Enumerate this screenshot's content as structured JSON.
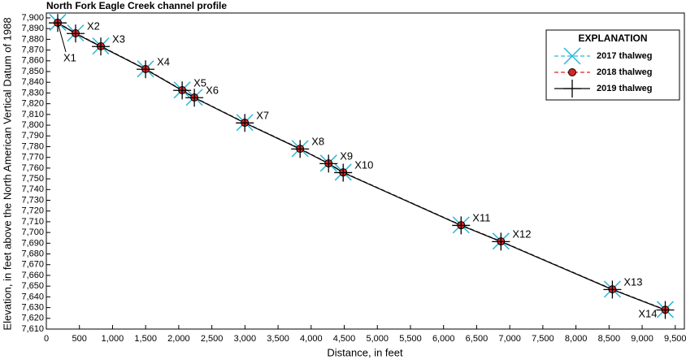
{
  "chart_data": {
    "type": "line",
    "title": "North Fork Eagle Creek channel profile",
    "xlabel": "Distance, in feet",
    "ylabel": "Elevation, in feet above the North American Vertical Datum of 1988",
    "legend_title": "EXPLANATION",
    "legend_position": "upper right",
    "xlim": [
      0,
      9650
    ],
    "ylim": [
      7610,
      7900
    ],
    "xticks": [
      0,
      500,
      {
        "value": 1000,
        "label": "1,000"
      },
      {
        "value": 1500,
        "label": "1,500"
      },
      {
        "value": 2000,
        "label": "2,000"
      },
      {
        "value": 2500,
        "label": "2,500"
      },
      {
        "value": 3000,
        "label": "3,000"
      },
      {
        "value": 3500,
        "label": "3,500"
      },
      {
        "value": 4000,
        "label": "4,000"
      },
      {
        "value": 4500,
        "label": "4,500"
      },
      {
        "value": 5000,
        "label": "5,000"
      },
      {
        "value": 5500,
        "label": "5,500"
      },
      {
        "value": 6000,
        "label": "6,000"
      },
      {
        "value": 6500,
        "label": "6,500"
      },
      {
        "value": 7000,
        "label": "7,000"
      },
      {
        "value": 7500,
        "label": "7,500"
      },
      {
        "value": 8000,
        "label": "8,000"
      },
      {
        "value": 8500,
        "label": "8,500"
      },
      {
        "value": 9000,
        "label": "9,000"
      },
      {
        "value": 9500,
        "label": "9,500"
      }
    ],
    "yticks": [
      {
        "value": 7610,
        "label": "7,610"
      },
      {
        "value": 7620,
        "label": "7,620"
      },
      {
        "value": 7630,
        "label": "7,630"
      },
      {
        "value": 7640,
        "label": "7,640"
      },
      {
        "value": 7650,
        "label": "7,650"
      },
      {
        "value": 7660,
        "label": "7,660"
      },
      {
        "value": 7670,
        "label": "7,670"
      },
      {
        "value": 7680,
        "label": "7,680"
      },
      {
        "value": 7690,
        "label": "7,690"
      },
      {
        "value": 7700,
        "label": "7,700"
      },
      {
        "value": 7710,
        "label": "7,710"
      },
      {
        "value": 7720,
        "label": "7,720"
      },
      {
        "value": 7730,
        "label": "7,730"
      },
      {
        "value": 7740,
        "label": "7,740"
      },
      {
        "value": 7750,
        "label": "7,750"
      },
      {
        "value": 7760,
        "label": "7,760"
      },
      {
        "value": 7770,
        "label": "7,770"
      },
      {
        "value": 7780,
        "label": "7,780"
      },
      {
        "value": 7790,
        "label": "7,790"
      },
      {
        "value": 7800,
        "label": "7,800"
      },
      {
        "value": 7810,
        "label": "7,810"
      },
      {
        "value": 7820,
        "label": "7,820"
      },
      {
        "value": 7830,
        "label": "7,830"
      },
      {
        "value": 7840,
        "label": "7,840"
      },
      {
        "value": 7850,
        "label": "7,850"
      },
      {
        "value": 7860,
        "label": "7,860"
      },
      {
        "value": 7870,
        "label": "7,870"
      },
      {
        "value": 7880,
        "label": "7,880"
      },
      {
        "value": 7890,
        "label": "7,890"
      },
      {
        "value": 7900,
        "label": "7,900"
      }
    ],
    "point_labels": [
      "X1",
      "X2",
      "X3",
      "X4",
      "X5",
      "X6",
      "X7",
      "X8",
      "X9",
      "X10",
      "X11",
      "X12",
      "X13",
      "X14"
    ],
    "x": [
      172,
      442,
      823,
      1499,
      2052,
      2236,
      2998,
      3833,
      4263,
      4484,
      6265,
      6867,
      8550,
      9349
    ],
    "series": [
      {
        "name": "2017 thalweg",
        "color": "#29b6d8",
        "marker": "x",
        "dash": true,
        "values": [
          7895.8,
          7885.9,
          7873.8,
          7852.5,
          7832.8,
          7826.0,
          7802.5,
          7778.2,
          7764.6,
          7756.2,
          7707.0,
          7691.9,
          7647.2,
          7628.2
        ]
      },
      {
        "name": "2018 thalweg",
        "color": "#d62728",
        "marker": "circle",
        "dash": true,
        "values": [
          7895.5,
          7885.6,
          7873.5,
          7852.3,
          7832.6,
          7825.8,
          7802.3,
          7778.0,
          7764.4,
          7756.0,
          7706.8,
          7691.7,
          7647.0,
          7628.0
        ]
      },
      {
        "name": "2019 thalweg",
        "color": "#000000",
        "marker": "plus",
        "dash": false,
        "values": [
          7895.3,
          7885.4,
          7873.3,
          7852.1,
          7832.4,
          7825.6,
          7802.1,
          7777.8,
          7764.2,
          7755.8,
          7706.6,
          7691.5,
          7646.8,
          7627.8
        ]
      }
    ]
  }
}
